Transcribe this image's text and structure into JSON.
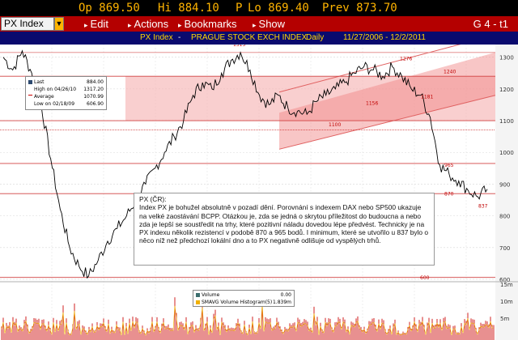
{
  "quote": {
    "open": "Op 869.50",
    "high": "Hi 884.10",
    "pl": "P",
    "low": "Lo 869.40",
    "prev": "Prev 873.70"
  },
  "menu": {
    "ticker": "PX Index",
    "items": [
      "Edit",
      "Actions",
      "Bookmarks",
      "Show"
    ],
    "screen_id": "G 4 - t1"
  },
  "info": {
    "ticker": "PX Index",
    "exchange": "PRAGUE STOCK EXCH INDEX",
    "period": "Daily",
    "range": "11/27/2006 - 12/2/2011"
  },
  "legend": {
    "rows": [
      {
        "label": "Last",
        "value": "884.00"
      },
      {
        "label": "High on 04/26/10",
        "value": "1317.20"
      },
      {
        "label": "Average",
        "value": "1070.99"
      },
      {
        "label": "Low on 02/18/09",
        "value": "606.90"
      }
    ]
  },
  "annotations": {
    "peak": "1315",
    "high2": "1276",
    "r1240": "1240",
    "r1181": "1181",
    "l1156": "1156",
    "l1100": "1100",
    "l965": "965",
    "l870": "870",
    "l837": "837",
    "l600": "600",
    "last_badge": "884.00"
  },
  "note": {
    "title": "PX (ČR):",
    "body": "Index PX je bohužel absolutně v pozadí dění. Porovnání s indexem DAX nebo SP500 ukazuje na velké zaostávání BCPP. Otázkou je, zda se jedná o skrytou příležitost do budoucna a nebo zda je lepší se soustředit na trhy, které pozitivní náladu dovedou lépe předvést. Technicky je na PX indexu několik rezistencí v podobě 870 a 965 bodů. I minimum, které se utvořilo u 837 bylo o něco níž než předchozí lokální dno a to PX negativně odlišuje od vyspělých trhů."
  },
  "volume_legend": {
    "rows": [
      {
        "label": "Volume",
        "value": "0.00"
      },
      {
        "label": "SMAVG Volume Histogram(5)",
        "value": "1.839m"
      }
    ]
  },
  "chart_data": {
    "type": "line",
    "title": "PRAGUE STOCK EXCH INDEX",
    "x_range": [
      "11/27/2006",
      "12/2/2011"
    ],
    "y_ticks": [
      "1300",
      "1200",
      "1100",
      "1000",
      "900",
      "800",
      "700",
      "600"
    ],
    "ylim": [
      600,
      1340
    ],
    "vol_ticks": [
      "15m",
      "10m",
      "5m"
    ],
    "series": [
      {
        "name": "PX Index",
        "values": [
          1300,
          1260,
          1320,
          1250,
          1150,
          980,
          820,
          700,
          640,
          610,
          660,
          720,
          760,
          800,
          850,
          900,
          950,
          1000,
          1050,
          1100,
          1180,
          1220,
          1200,
          1250,
          1290,
          1315,
          1260,
          1180,
          1150,
          1180,
          1140,
          1130,
          1120,
          1160,
          1180,
          1200,
          1220,
          1250,
          1270,
          1260,
          1240,
          1270,
          1240,
          1200,
          1180,
          1110,
          960,
          930,
          910,
          880,
          860,
          884
        ]
      }
    ],
    "colors": {
      "price": "#000000",
      "channel": "#f08080",
      "average": "#d00000",
      "volume": "#d02020",
      "volume_avg": "#f0b000"
    }
  }
}
